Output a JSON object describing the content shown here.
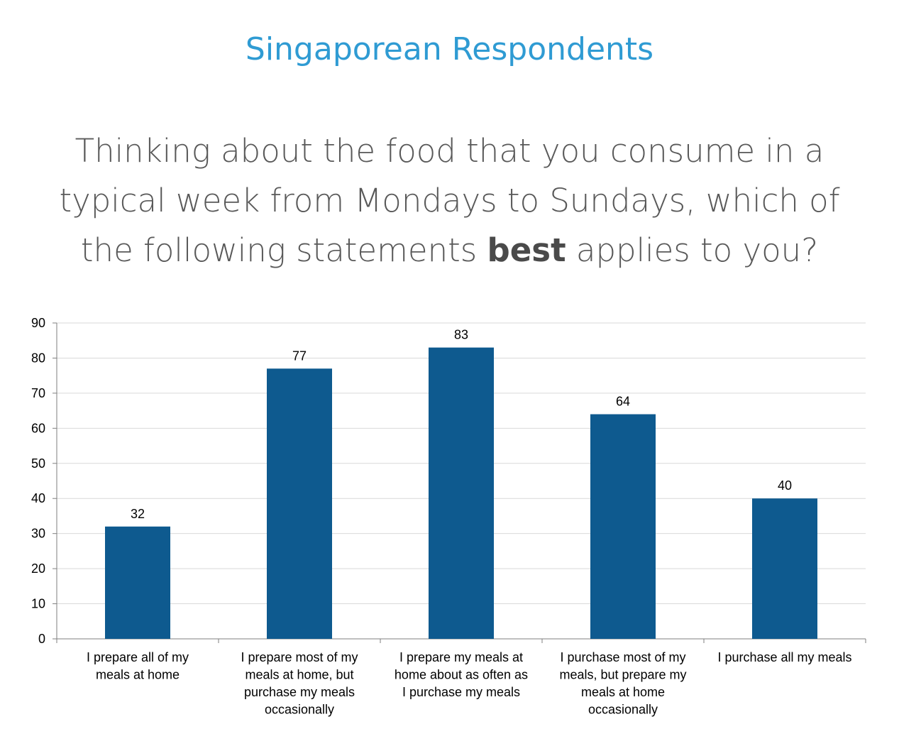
{
  "header": {
    "title": "Singaporean Respondents"
  },
  "question": {
    "before": "Thinking about the food that you consume in a typical week from Mondays to Sundays, which of the following statements",
    "emphasis": "best",
    "after": "applies to you?"
  },
  "colors": {
    "title": "#2f9bd3",
    "bar": "#0e5a8f",
    "grid": "#d9d9d9",
    "question": "#595959"
  },
  "chart_data": {
    "type": "bar",
    "title": "",
    "xlabel": "",
    "ylabel": "",
    "ylim": [
      0,
      90
    ],
    "yticks": [
      0,
      10,
      20,
      30,
      40,
      50,
      60,
      70,
      80,
      90
    ],
    "grid": true,
    "categories": [
      [
        "I prepare all of my",
        "meals at home"
      ],
      [
        "I prepare most of my",
        "meals at home, but",
        "purchase my meals",
        "occasionally"
      ],
      [
        "I prepare my meals at",
        "home about as often as",
        "I purchase my meals"
      ],
      [
        "I purchase most of my",
        "meals, but prepare my",
        "meals at home",
        "occasionally"
      ],
      [
        "I purchase all my meals"
      ]
    ],
    "values": [
      32,
      77,
      83,
      64,
      40
    ]
  }
}
